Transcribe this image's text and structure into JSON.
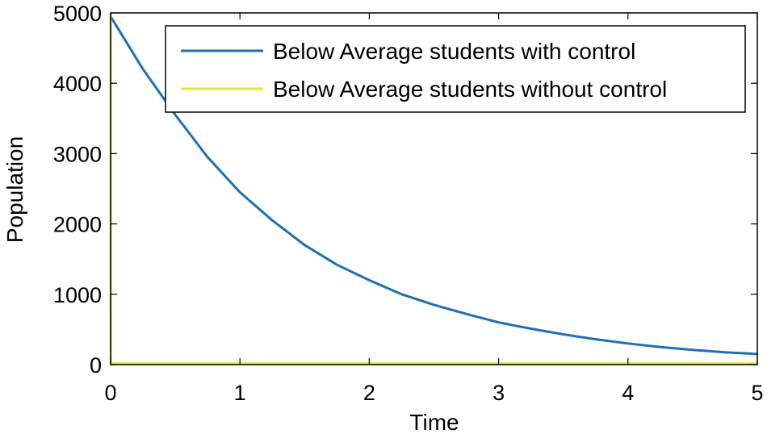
{
  "chart_data": {
    "type": "line",
    "title": "",
    "xlabel": "Time",
    "ylabel": "Population",
    "xlim": [
      0,
      5
    ],
    "ylim": [
      0,
      5000
    ],
    "xticks": [
      "0",
      "1",
      "2",
      "3",
      "4",
      "5"
    ],
    "yticks": [
      "0",
      "1000",
      "2000",
      "3000",
      "4000",
      "5000"
    ],
    "grid": false,
    "legend_position": "top-right",
    "series": [
      {
        "name": "Below Average students with control",
        "color": "#1f6fb3",
        "x": [
          0,
          0.25,
          0.5,
          0.75,
          1.0,
          1.25,
          1.5,
          1.75,
          2.0,
          2.25,
          2.5,
          2.75,
          3.0,
          3.25,
          3.5,
          3.75,
          4.0,
          4.25,
          4.5,
          4.75,
          5.0
        ],
        "y": [
          4950,
          4200,
          3550,
          2950,
          2450,
          2050,
          1700,
          1420,
          1200,
          1000,
          850,
          720,
          600,
          510,
          430,
          360,
          300,
          250,
          210,
          175,
          150
        ]
      },
      {
        "name": "Below Average students without control",
        "color": "#e8e82a",
        "x": [
          0,
          0.001,
          5.0
        ],
        "y": [
          5000,
          15,
          15
        ]
      }
    ]
  }
}
